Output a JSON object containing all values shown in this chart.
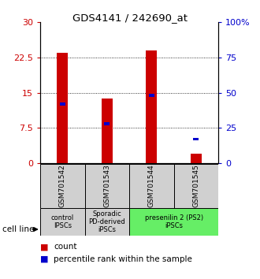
{
  "title": "GDS4141 / 242690_at",
  "samples": [
    "GSM701542",
    "GSM701543",
    "GSM701544",
    "GSM701545"
  ],
  "counts": [
    23.5,
    13.8,
    24.0,
    2.0
  ],
  "percentiles_pct": [
    42,
    28,
    48,
    17
  ],
  "ylim_left": [
    0,
    30
  ],
  "ylim_right": [
    0,
    100
  ],
  "yticks_left": [
    0,
    7.5,
    15,
    22.5,
    30
  ],
  "yticks_right": [
    0,
    25,
    50,
    75,
    100
  ],
  "bar_color": "#cc0000",
  "blue_color": "#0000cc",
  "green_color": "#66ee66",
  "gray_color": "#d0d0d0",
  "cell_line_label": "cell line",
  "legend_count": "count",
  "legend_pct": "percentile rank within the sample",
  "bar_width": 0.25,
  "blue_size": 0.5,
  "group_info": [
    [
      0,
      0.5,
      "#d0d0d0",
      "control\nIPSCs"
    ],
    [
      1,
      1.5,
      "#d0d0d0",
      "Sporadic\nPD-derived\niPSCs"
    ],
    [
      2.5,
      3.5,
      "#66ee66",
      "presenilin 2 (PS2)\niPSCs"
    ]
  ]
}
